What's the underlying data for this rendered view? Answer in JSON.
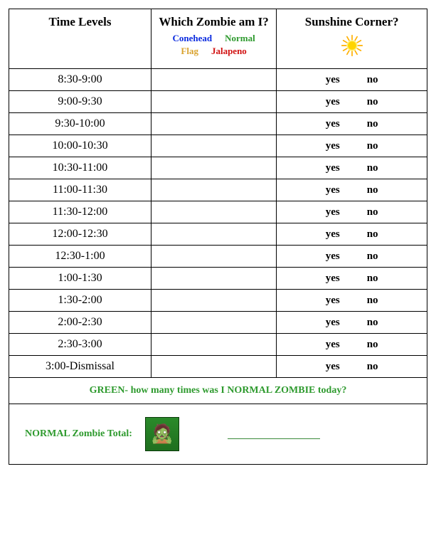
{
  "headers": {
    "time": "Time Levels",
    "zombie": "Which Zombie am I?",
    "sun": "Sunshine Corner?"
  },
  "zombie_types": [
    {
      "label": "Conehead",
      "color": "#0a2adf"
    },
    {
      "label": "Normal",
      "color": "#2e9a2e"
    },
    {
      "label": "Flag",
      "color": "#d9a330"
    },
    {
      "label": "Jalapeno",
      "color": "#d11111"
    }
  ],
  "rows": [
    {
      "time": "8:30-9:00"
    },
    {
      "time": "9:00-9:30"
    },
    {
      "time": "9:30-10:00"
    },
    {
      "time": "10:00-10:30"
    },
    {
      "time": "10:30-11:00"
    },
    {
      "time": "11:00-11:30"
    },
    {
      "time": "11:30-12:00"
    },
    {
      "time": "12:00-12:30"
    },
    {
      "time": "12:30-1:00"
    },
    {
      "time": "1:00-1:30"
    },
    {
      "time": "1:30-2:00"
    },
    {
      "time": "2:00-2:30"
    },
    {
      "time": "2:30-3:00"
    },
    {
      "time": "3:00-Dismissal"
    }
  ],
  "yn": {
    "yes": "yes",
    "no": "no"
  },
  "green_question": {
    "text": "GREEN- how many times was I NORMAL ZOMBIE today?",
    "color": "#2e9a2e"
  },
  "total": {
    "label": "NORMAL Zombie Total:",
    "color": "#2e9a2e"
  },
  "sun_colors": {
    "core": "#ffd400",
    "ray": "#ffb000",
    "glow": "#fff176"
  }
}
